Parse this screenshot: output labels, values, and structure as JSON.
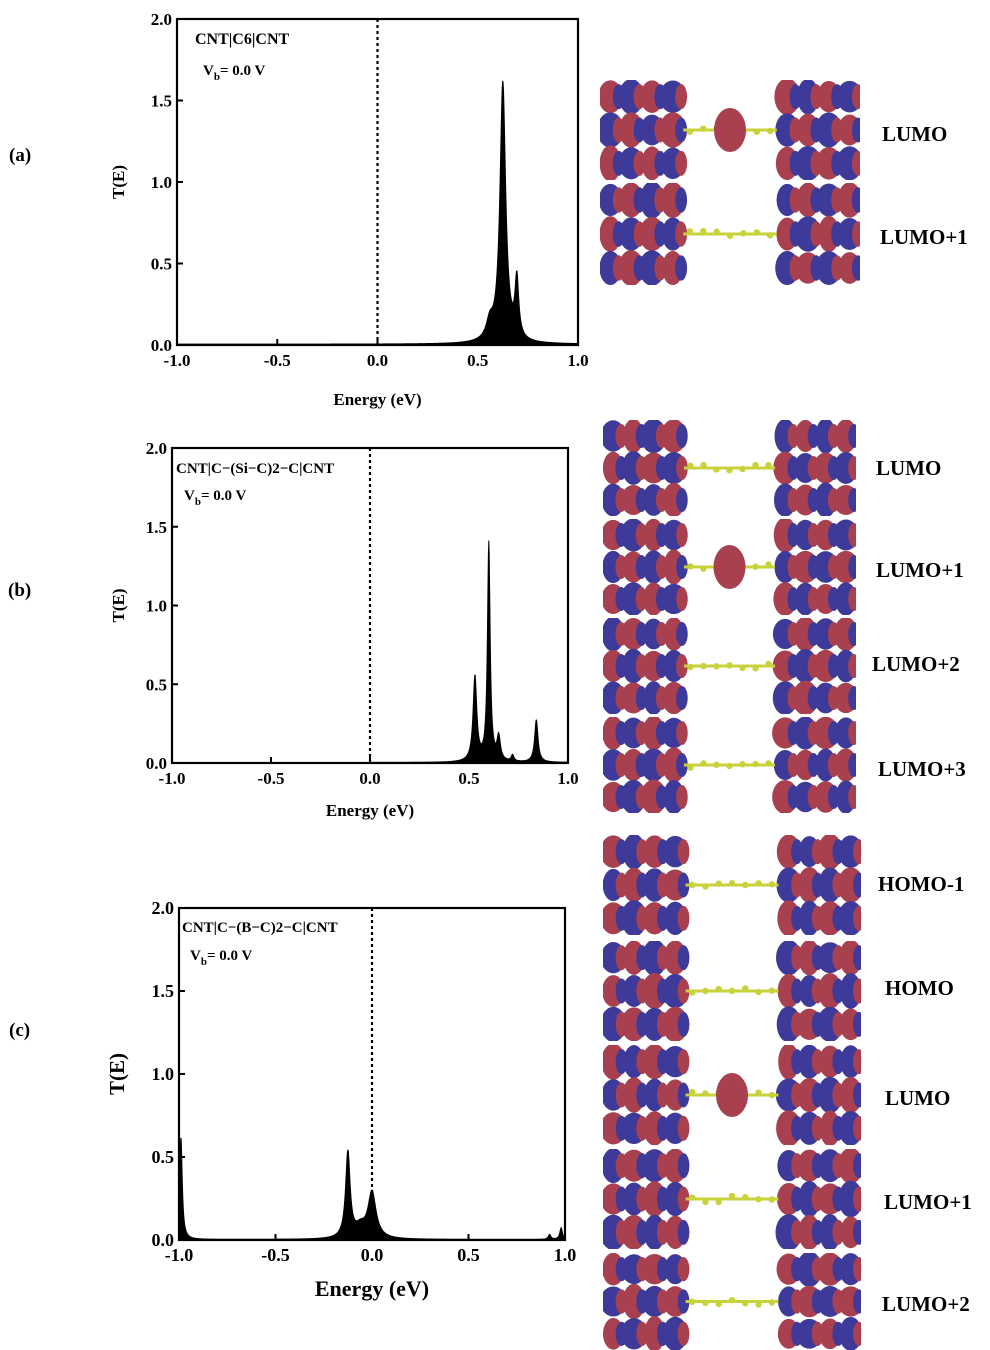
{
  "panels": [
    {
      "label": "(a)",
      "annotation_system": "CNT|C6|CNT",
      "annotation_bias": "V",
      "annotation_bias_sub": "b",
      "annotation_bias_value": "= 0.0 V",
      "orbitals": [
        "LUMO",
        "LUMO+1"
      ]
    },
    {
      "label": "(b)",
      "annotation_system": "CNT|C−(Si−C)2−C|CNT",
      "annotation_bias": "V",
      "annotation_bias_sub": "b",
      "annotation_bias_value": "= 0.0 V",
      "orbitals": [
        "LUMO",
        "LUMO+1",
        "LUMO+2",
        "LUMO+3"
      ]
    },
    {
      "label": "(c)",
      "annotation_system": "CNT|C−(B−C)2−C|CNT",
      "annotation_bias": "V",
      "annotation_bias_sub": "b",
      "annotation_bias_value": "= 0.0 V",
      "orbitals": [
        "HOMO-1",
        "HOMO",
        "LUMO",
        "LUMO+1",
        "LUMO+2"
      ]
    }
  ],
  "colors": {
    "curve": "#000000",
    "orbital_red": "#a8404f",
    "orbital_blue": "#3e3a9a",
    "atom": "#c8d23a"
  },
  "chart_data": [
    {
      "type": "area",
      "xlabel": "Energy (eV)",
      "ylabel": "T(E)",
      "xlim": [
        -1.0,
        1.0
      ],
      "ylim": [
        0.0,
        2.0
      ],
      "xticks": [
        "-1.0",
        "-0.5",
        "0.0",
        "0.5",
        "1.0"
      ],
      "yticks": [
        "0.0",
        "0.5",
        "1.0",
        "1.5",
        "2.0"
      ],
      "fermi_level": 0.0,
      "baseline": 0.005,
      "peaks": [
        {
          "e": 0.625,
          "t": 1.6,
          "w": 0.017
        },
        {
          "e": 0.695,
          "t": 0.36,
          "w": 0.011
        },
        {
          "e": 0.56,
          "t": 0.1,
          "w": 0.02
        }
      ]
    },
    {
      "type": "area",
      "xlabel": "Energy (eV)",
      "ylabel": "T(E)",
      "xlim": [
        -1.0,
        1.0
      ],
      "ylim": [
        0.0,
        2.0
      ],
      "xticks": [
        "-1.0",
        "-0.5",
        "0.0",
        "0.5",
        "1.0"
      ],
      "yticks": [
        "0.0",
        "0.5",
        "1.0",
        "1.5",
        "2.0"
      ],
      "fermi_level": 0.0,
      "baseline": 0.003,
      "peaks": [
        {
          "e": 0.53,
          "t": 0.54,
          "w": 0.011
        },
        {
          "e": 0.6,
          "t": 1.39,
          "w": 0.008
        },
        {
          "e": 0.65,
          "t": 0.15,
          "w": 0.01
        },
        {
          "e": 0.72,
          "t": 0.04,
          "w": 0.008
        },
        {
          "e": 0.84,
          "t": 0.27,
          "w": 0.01
        }
      ]
    },
    {
      "type": "area",
      "xlabel": "Energy (eV)",
      "ylabel": "T(E)",
      "xlim": [
        -1.0,
        1.0
      ],
      "ylim": [
        0.0,
        2.0
      ],
      "xticks": [
        "-1.0",
        "-0.5",
        "0.0",
        "0.5",
        "1.0"
      ],
      "yticks": [
        "0.0",
        "0.5",
        "1.0",
        "1.5",
        "2.0"
      ],
      "fermi_level": 0.0,
      "baseline": 0.003,
      "peaks": [
        {
          "e": -0.99,
          "t": 0.62,
          "w": 0.008
        },
        {
          "e": -0.125,
          "t": 0.52,
          "w": 0.014
        },
        {
          "e": 0.0,
          "t": 0.28,
          "w": 0.025
        },
        {
          "e": -0.06,
          "t": 0.06,
          "w": 0.03
        },
        {
          "e": 0.92,
          "t": 0.03,
          "w": 0.008
        },
        {
          "e": 0.98,
          "t": 0.07,
          "w": 0.008
        }
      ]
    }
  ]
}
